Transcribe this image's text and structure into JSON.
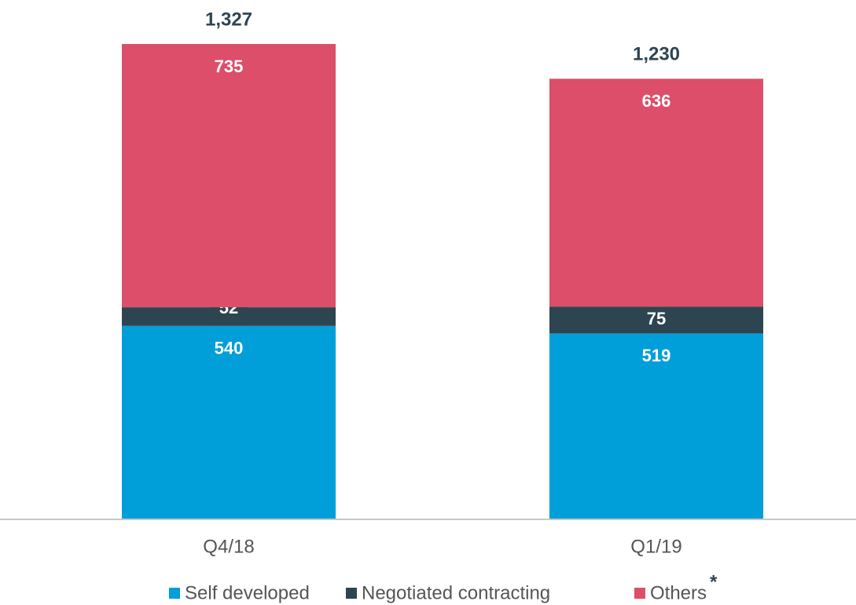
{
  "chart_data": {
    "type": "stacked-bar",
    "categories": [
      "Q4/18",
      "Q1/19"
    ],
    "series": [
      {
        "name": "Self developed",
        "color": "#009fda",
        "values": [
          540,
          519
        ]
      },
      {
        "name": "Negotiated contracting",
        "color": "#2d4550",
        "values": [
          52,
          75
        ]
      },
      {
        "name": "Others",
        "color": "#dc4e6a",
        "values": [
          735,
          636
        ],
        "footnote_mark": "*"
      }
    ],
    "totals": [
      1327,
      1230
    ],
    "total_labels": [
      "1,327",
      "1,230"
    ]
  }
}
